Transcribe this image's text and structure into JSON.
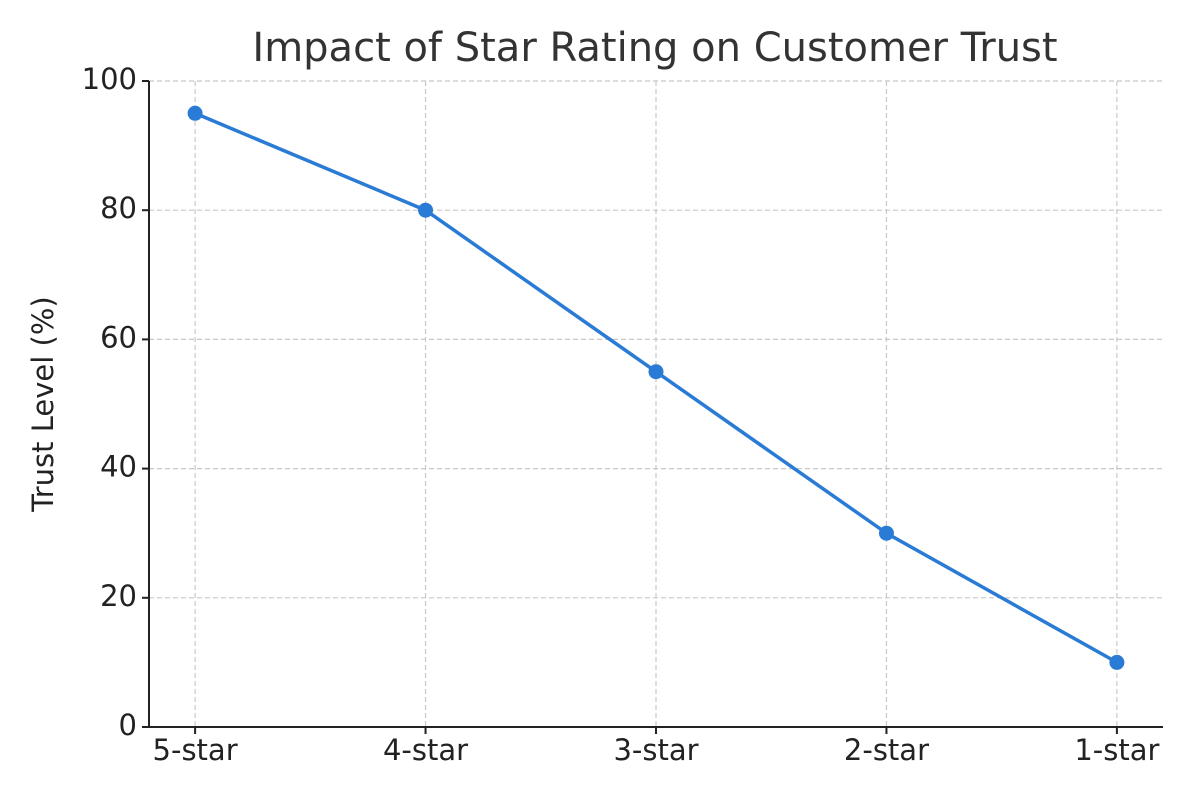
{
  "chart_data": {
    "type": "line",
    "title": "Impact of Star Rating on Customer Trust",
    "y_label": "Trust Level (%)",
    "categories": [
      "5-star",
      "4-star",
      "3-star",
      "2-star",
      "1-star"
    ],
    "values": [
      95,
      80,
      55,
      30,
      10
    ],
    "color": "#2a7bd5",
    "ylim": [
      0,
      100
    ],
    "yticks": [
      0,
      20,
      40,
      60,
      80,
      100
    ],
    "grid": true
  }
}
